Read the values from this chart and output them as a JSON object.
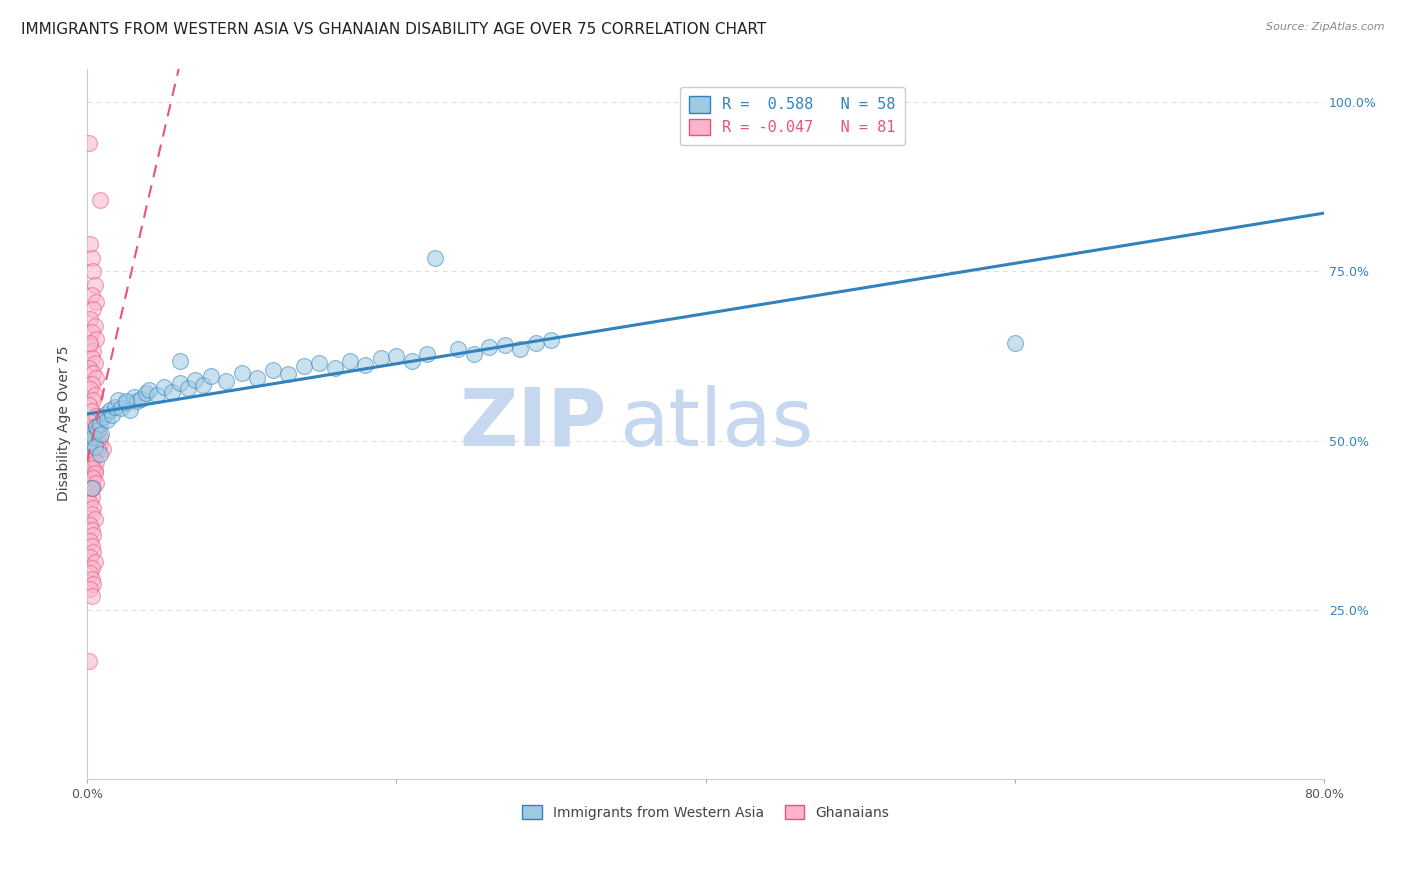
{
  "title": "IMMIGRANTS FROM WESTERN ASIA VS GHANAIAN DISABILITY AGE OVER 75 CORRELATION CHART",
  "source_text": "Source: ZipAtlas.com",
  "ylabel": "Disability Age Over 75",
  "x_min": 0.0,
  "x_max": 0.8,
  "y_min": 0.0,
  "y_max": 1.05,
  "x_ticks": [
    0.0,
    0.2,
    0.4,
    0.6,
    0.8
  ],
  "x_tick_labels": [
    "0.0%",
    "",
    "",
    "",
    "80.0%"
  ],
  "y_ticks": [
    0.25,
    0.5,
    0.75,
    1.0
  ],
  "y_tick_labels": [
    "25.0%",
    "50.0%",
    "75.0%",
    "100.0%"
  ],
  "blue_scatter": [
    [
      0.001,
      0.5
    ],
    [
      0.002,
      0.495
    ],
    [
      0.003,
      0.51
    ],
    [
      0.004,
      0.505
    ],
    [
      0.005,
      0.49
    ],
    [
      0.006,
      0.52
    ],
    [
      0.007,
      0.515
    ],
    [
      0.008,
      0.525
    ],
    [
      0.009,
      0.51
    ],
    [
      0.01,
      0.535
    ],
    [
      0.012,
      0.54
    ],
    [
      0.013,
      0.53
    ],
    [
      0.015,
      0.545
    ],
    [
      0.016,
      0.538
    ],
    [
      0.018,
      0.55
    ],
    [
      0.02,
      0.56
    ],
    [
      0.022,
      0.548
    ],
    [
      0.025,
      0.555
    ],
    [
      0.028,
      0.545
    ],
    [
      0.03,
      0.565
    ],
    [
      0.032,
      0.558
    ],
    [
      0.035,
      0.562
    ],
    [
      0.038,
      0.57
    ],
    [
      0.04,
      0.575
    ],
    [
      0.045,
      0.568
    ],
    [
      0.05,
      0.58
    ],
    [
      0.055,
      0.572
    ],
    [
      0.06,
      0.585
    ],
    [
      0.065,
      0.578
    ],
    [
      0.07,
      0.59
    ],
    [
      0.075,
      0.582
    ],
    [
      0.08,
      0.595
    ],
    [
      0.09,
      0.588
    ],
    [
      0.1,
      0.6
    ],
    [
      0.11,
      0.592
    ],
    [
      0.12,
      0.605
    ],
    [
      0.13,
      0.598
    ],
    [
      0.14,
      0.61
    ],
    [
      0.15,
      0.615
    ],
    [
      0.16,
      0.608
    ],
    [
      0.17,
      0.618
    ],
    [
      0.18,
      0.612
    ],
    [
      0.19,
      0.622
    ],
    [
      0.2,
      0.625
    ],
    [
      0.21,
      0.618
    ],
    [
      0.22,
      0.628
    ],
    [
      0.225,
      0.77
    ],
    [
      0.24,
      0.635
    ],
    [
      0.25,
      0.628
    ],
    [
      0.26,
      0.638
    ],
    [
      0.27,
      0.642
    ],
    [
      0.28,
      0.635
    ],
    [
      0.29,
      0.645
    ],
    [
      0.3,
      0.648
    ],
    [
      0.003,
      0.43
    ],
    [
      0.6,
      0.645
    ],
    [
      0.06,
      0.618
    ],
    [
      0.025,
      0.558
    ],
    [
      0.008,
      0.48
    ]
  ],
  "pink_scatter": [
    [
      0.001,
      0.94
    ],
    [
      0.008,
      0.855
    ],
    [
      0.002,
      0.79
    ],
    [
      0.003,
      0.77
    ],
    [
      0.004,
      0.75
    ],
    [
      0.005,
      0.73
    ],
    [
      0.003,
      0.715
    ],
    [
      0.006,
      0.705
    ],
    [
      0.004,
      0.695
    ],
    [
      0.002,
      0.68
    ],
    [
      0.005,
      0.67
    ],
    [
      0.003,
      0.66
    ],
    [
      0.006,
      0.65
    ],
    [
      0.002,
      0.642
    ],
    [
      0.004,
      0.632
    ],
    [
      0.003,
      0.622
    ],
    [
      0.005,
      0.615
    ],
    [
      0.001,
      0.608
    ],
    [
      0.004,
      0.6
    ],
    [
      0.006,
      0.592
    ],
    [
      0.003,
      0.584
    ],
    [
      0.002,
      0.576
    ],
    [
      0.005,
      0.568
    ],
    [
      0.004,
      0.56
    ],
    [
      0.001,
      0.552
    ],
    [
      0.003,
      0.544
    ],
    [
      0.006,
      0.536
    ],
    [
      0.002,
      0.528
    ],
    [
      0.004,
      0.52
    ],
    [
      0.005,
      0.512
    ],
    [
      0.003,
      0.504
    ],
    [
      0.002,
      0.496
    ],
    [
      0.001,
      0.488
    ],
    [
      0.003,
      0.48
    ],
    [
      0.004,
      0.472
    ],
    [
      0.002,
      0.464
    ],
    [
      0.005,
      0.456
    ],
    [
      0.003,
      0.448
    ],
    [
      0.002,
      0.44
    ],
    [
      0.004,
      0.432
    ],
    [
      0.001,
      0.424
    ],
    [
      0.003,
      0.416
    ],
    [
      0.002,
      0.408
    ],
    [
      0.004,
      0.4
    ],
    [
      0.003,
      0.392
    ],
    [
      0.005,
      0.384
    ],
    [
      0.002,
      0.376
    ],
    [
      0.003,
      0.368
    ],
    [
      0.004,
      0.36
    ],
    [
      0.002,
      0.352
    ],
    [
      0.003,
      0.344
    ],
    [
      0.004,
      0.336
    ],
    [
      0.002,
      0.328
    ],
    [
      0.005,
      0.32
    ],
    [
      0.003,
      0.312
    ],
    [
      0.002,
      0.304
    ],
    [
      0.003,
      0.296
    ],
    [
      0.004,
      0.288
    ],
    [
      0.002,
      0.28
    ],
    [
      0.003,
      0.27
    ],
    [
      0.001,
      0.175
    ],
    [
      0.003,
      0.498
    ],
    [
      0.006,
      0.508
    ],
    [
      0.002,
      0.645
    ],
    [
      0.007,
      0.51
    ],
    [
      0.005,
      0.502
    ],
    [
      0.008,
      0.495
    ],
    [
      0.01,
      0.488
    ],
    [
      0.004,
      0.515
    ],
    [
      0.006,
      0.52
    ],
    [
      0.008,
      0.505
    ],
    [
      0.005,
      0.492
    ],
    [
      0.007,
      0.487
    ],
    [
      0.004,
      0.475
    ],
    [
      0.006,
      0.468
    ],
    [
      0.003,
      0.46
    ],
    [
      0.005,
      0.452
    ],
    [
      0.004,
      0.445
    ],
    [
      0.006,
      0.438
    ],
    [
      0.003,
      0.43
    ]
  ],
  "blue_color": "#9ecae1",
  "pink_color": "#fbb4c9",
  "blue_edge_color": "#3182bd",
  "pink_edge_color": "#e8547a",
  "blue_line_color": "#3182bd",
  "pink_line_color": "#e8547a",
  "grid_color": "#dddddd",
  "background_color": "#ffffff",
  "title_fontsize": 11,
  "axis_label_fontsize": 10,
  "tick_fontsize": 9,
  "watermark_zip": "ZIP",
  "watermark_atlas": "atlas",
  "watermark_color": "#c5d8f0"
}
